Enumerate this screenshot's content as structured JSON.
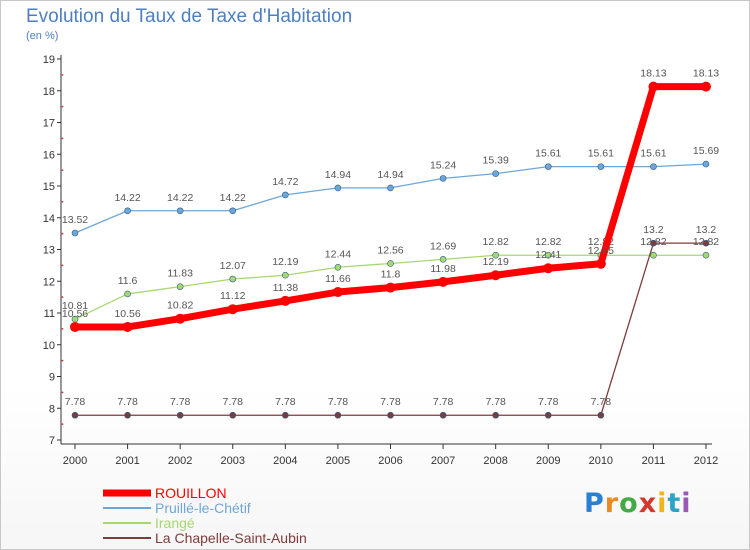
{
  "title": "Evolution du Taux de Taxe d'Habitation",
  "unit": "(en %)",
  "logo": [
    "P",
    "r",
    "o",
    "x",
    "i",
    "t",
    "i"
  ],
  "chart_data": {
    "type": "line",
    "title": "Evolution du Taux de Taxe d'Habitation",
    "ylabel": "(en %)",
    "x": [
      "2000",
      "2001",
      "2002",
      "2003",
      "2004",
      "2005",
      "2006",
      "2007",
      "2008",
      "2009",
      "2010",
      "2011",
      "2012"
    ],
    "ylim": [
      7,
      19
    ],
    "yticks": [
      7,
      8,
      9,
      10,
      11,
      12,
      13,
      14,
      15,
      16,
      17,
      18,
      19
    ],
    "grid": false,
    "legend": "bottom-left",
    "series": [
      {
        "name": "ROUILLON",
        "color": "#ff0000",
        "values": [
          10.56,
          10.56,
          10.82,
          11.12,
          11.38,
          11.66,
          11.8,
          11.98,
          12.19,
          12.41,
          12.55,
          18.13,
          18.13
        ],
        "labels": [
          "10.56",
          "10.56",
          "10.82",
          "11.12",
          "11.38",
          "11.66",
          "11.8",
          "11.98",
          "12.19",
          "12.41",
          "12.55",
          "18.13",
          "18.13"
        ]
      },
      {
        "name": "Pruillé-le-Chétif",
        "color": "#6ea6d8",
        "values": [
          13.52,
          14.22,
          14.22,
          14.22,
          14.72,
          14.94,
          14.94,
          15.24,
          15.39,
          15.61,
          15.61,
          15.61,
          15.69
        ],
        "labels": [
          "13.52",
          "14.22",
          "14.22",
          "14.22",
          "14.72",
          "14.94",
          "14.94",
          "15.24",
          "15.39",
          "15.61",
          "15.61",
          "15.61",
          "15.69"
        ]
      },
      {
        "name": "Irangé",
        "color": "#a6d86e",
        "values": [
          10.81,
          11.6,
          11.83,
          12.07,
          12.19,
          12.44,
          12.56,
          12.69,
          12.82,
          12.82,
          12.82,
          12.82,
          12.82
        ],
        "labels": [
          "10.81",
          "11.6",
          "11.83",
          "12.07",
          "12.19",
          "12.44",
          "12.56",
          "12.69",
          "12.82",
          "12.82",
          "12.82",
          "12.82",
          "12.82"
        ]
      },
      {
        "name": "La Chapelle-Saint-Aubin",
        "color": "#7f3b3b",
        "values": [
          7.78,
          7.78,
          7.78,
          7.78,
          7.78,
          7.78,
          7.78,
          7.78,
          7.78,
          7.78,
          7.78,
          13.2,
          13.2
        ],
        "labels": [
          "7.78",
          "7.78",
          "7.78",
          "7.78",
          "7.78",
          "7.78",
          "7.78",
          "7.78",
          "7.78",
          "7.78",
          "7.78",
          "13.2",
          "13.2"
        ]
      }
    ]
  }
}
